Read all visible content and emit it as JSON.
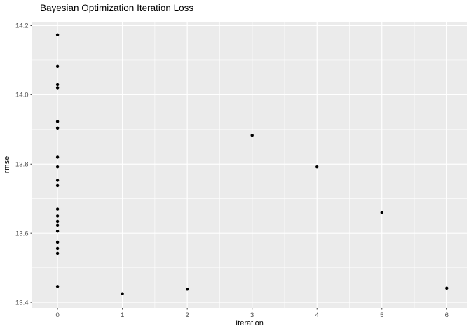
{
  "chart_data": {
    "type": "scatter",
    "title": "Bayesian Optimization Iteration Loss",
    "xlabel": "Iteration",
    "ylabel": "rmse",
    "xlim": [
      -0.39,
      6.31
    ],
    "ylim": [
      13.384,
      14.211
    ],
    "x_ticks": [
      0,
      1,
      2,
      3,
      4,
      5,
      6
    ],
    "y_ticks": [
      13.4,
      13.6,
      13.8,
      14.0,
      14.2
    ],
    "x_minor_ticks": [
      0.5,
      1.5,
      2.5,
      3.5,
      4.5,
      5.5
    ],
    "y_minor_ticks": [
      13.5,
      13.7,
      13.9,
      14.1
    ],
    "grid": true,
    "legend_position": "none",
    "colors": {
      "panel_background": "#EBEBEB",
      "gridline": "#FFFFFF",
      "point": "#000000",
      "tick_label": "#4D4D4D",
      "tick_mark": "#333333",
      "axis_title": "#000000",
      "title": "#000000",
      "page_background": "#FFFFFF"
    },
    "points": [
      {
        "iteration": 0,
        "rmse": 14.173
      },
      {
        "iteration": 0,
        "rmse": 14.082
      },
      {
        "iteration": 0,
        "rmse": 14.029
      },
      {
        "iteration": 0,
        "rmse": 14.02
      },
      {
        "iteration": 0,
        "rmse": 13.923
      },
      {
        "iteration": 0,
        "rmse": 13.904
      },
      {
        "iteration": 0,
        "rmse": 13.82
      },
      {
        "iteration": 0,
        "rmse": 13.792
      },
      {
        "iteration": 0,
        "rmse": 13.753
      },
      {
        "iteration": 0,
        "rmse": 13.738
      },
      {
        "iteration": 0,
        "rmse": 13.67
      },
      {
        "iteration": 0,
        "rmse": 13.65
      },
      {
        "iteration": 0,
        "rmse": 13.635
      },
      {
        "iteration": 0,
        "rmse": 13.623
      },
      {
        "iteration": 0,
        "rmse": 13.606
      },
      {
        "iteration": 0,
        "rmse": 13.574
      },
      {
        "iteration": 0,
        "rmse": 13.556
      },
      {
        "iteration": 0,
        "rmse": 13.542
      },
      {
        "iteration": 0,
        "rmse": 13.446
      },
      {
        "iteration": 1,
        "rmse": 13.425
      },
      {
        "iteration": 2,
        "rmse": 13.438
      },
      {
        "iteration": 3,
        "rmse": 13.883
      },
      {
        "iteration": 4,
        "rmse": 13.792
      },
      {
        "iteration": 5,
        "rmse": 13.66
      },
      {
        "iteration": 6,
        "rmse": 13.441
      }
    ]
  }
}
